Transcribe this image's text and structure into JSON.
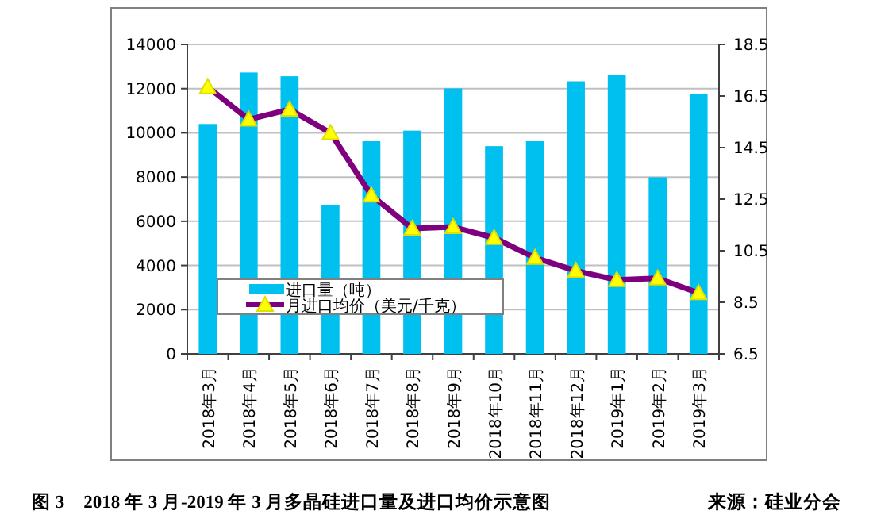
{
  "chart_data": {
    "type": "bar",
    "title": "图 3　2018 年 3 月-2019 年 3 月多晶硅进口量及进口均价示意图",
    "annotations": [
      "来源：硅业分会"
    ],
    "categories": [
      "2018年3月",
      "2018年4月",
      "2018年5月",
      "2018年6月",
      "2018年7月",
      "2018年8月",
      "2018年9月",
      "2018年10月",
      "2018年11月",
      "2018年12月",
      "2019年1月",
      "2019年2月",
      "2019年3月"
    ],
    "series": [
      {
        "name": "进口量（吨）",
        "color": "#00c0f0",
        "values": [
          10400,
          12730,
          12560,
          6750,
          9620,
          10100,
          12010,
          9400,
          9620,
          12330,
          12610,
          7990,
          11770
        ]
      },
      {
        "name": "月进口均价（美元/千克）",
        "type": "line",
        "axis": "y2",
        "color": "#7f007f",
        "marker": "triangle",
        "values": [
          16.85,
          15.59,
          15.98,
          15.07,
          12.65,
          11.36,
          11.42,
          11.0,
          10.23,
          9.72,
          9.37,
          9.43,
          8.86
        ]
      }
    ],
    "ylim": [
      0,
      14000
    ],
    "yticks": [
      0,
      2000,
      4000,
      6000,
      8000,
      10000,
      12000,
      14000
    ],
    "y2lim": [
      6.5,
      18.5
    ],
    "y2ticks": [
      6.5,
      8.5,
      10.5,
      12.5,
      14.5,
      16.5,
      18.5
    ],
    "grid": "y",
    "legend": "bottom left"
  }
}
